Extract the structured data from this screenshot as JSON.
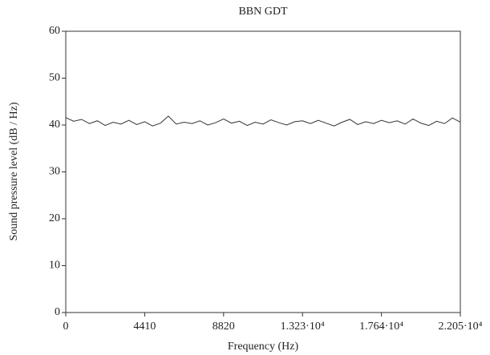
{
  "chart_data": {
    "type": "line",
    "title": "BBN GDT",
    "x_label": "Frequency (Hz)",
    "y_label": "Sound pressure level (dB / Hz)",
    "x": [
      0,
      441,
      882,
      1323,
      1764,
      2205,
      2646,
      3087,
      3528,
      3969,
      4410,
      4851,
      5292,
      5733,
      6174,
      6615,
      7056,
      7497,
      7938,
      8379,
      8820,
      9261,
      9702,
      10143,
      10584,
      11025,
      11466,
      11907,
      12348,
      12789,
      13230,
      13671,
      14112,
      14553,
      14994,
      15435,
      15876,
      16317,
      16758,
      17199,
      17640,
      18081,
      18522,
      18963,
      19404,
      19845,
      20286,
      20727,
      21168,
      21609,
      22050
    ],
    "series": [
      {
        "name": "BBN GDT",
        "color": "#333333",
        "values": [
          41.6,
          40.8,
          41.2,
          40.3,
          40.9,
          39.9,
          40.6,
          40.2,
          41.0,
          40.1,
          40.7,
          39.8,
          40.4,
          41.9,
          40.2,
          40.6,
          40.3,
          40.9,
          40.0,
          40.5,
          41.3,
          40.4,
          40.8,
          39.9,
          40.6,
          40.2,
          41.1,
          40.5,
          40.0,
          40.7,
          40.9,
          40.3,
          41.0,
          40.4,
          39.8,
          40.6,
          41.2,
          40.1,
          40.7,
          40.3,
          41.0,
          40.5,
          40.9,
          40.2,
          41.3,
          40.4,
          39.9,
          40.8,
          40.3,
          41.5,
          40.6
        ]
      }
    ],
    "xlim": [
      0,
      22050
    ],
    "ylim": [
      0,
      60
    ],
    "xticks": [
      0,
      4410,
      8820,
      {
        "value": 13230,
        "label": "1.323·10⁴"
      },
      {
        "value": 17640,
        "label": "1.764·10⁴"
      },
      {
        "value": 22050,
        "label": "2.205·10⁴"
      }
    ],
    "yticks": [
      0,
      10,
      20,
      30,
      40,
      50,
      60
    ],
    "grid": false
  }
}
